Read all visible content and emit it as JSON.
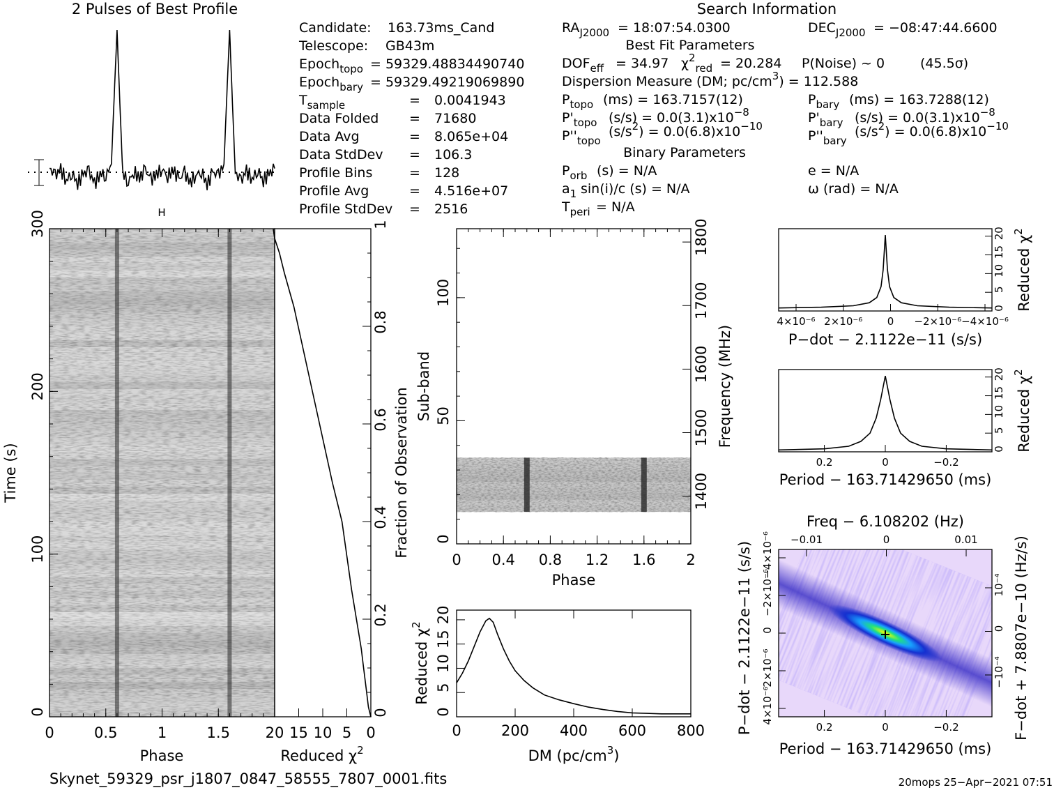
{
  "profile": {
    "title": "2 Pulses of Best Profile"
  },
  "info": {
    "search_title": "Search Information",
    "candidate_label": "Candidate:",
    "candidate_value": "163.73ms_Cand",
    "telescope_label": "Telescope:",
    "telescope_value": "GB43m",
    "epoch_topo_label": "Epoch",
    "epoch_topo_sub": "topo",
    "epoch_topo_value": "= 59329.48834490740",
    "epoch_bary_label": "Epoch",
    "epoch_bary_sub": "bary",
    "epoch_bary_value": "= 59329.49219069890",
    "tsample_label": "T",
    "tsample_sub": "sample",
    "tsample_value": "0.0041943",
    "folded_label": "Data Folded",
    "folded_value": "71680",
    "avg_label": "Data Avg",
    "avg_value": "8.065e+04",
    "std_label": "Data StdDev",
    "std_value": "106.3",
    "bins_label": "Profile Bins",
    "bins_value": "128",
    "pavg_label": "Profile Avg",
    "pavg_value": "4.516e+07",
    "pstd_label": "Profile StdDev",
    "pstd_value": "2516",
    "eq": "=",
    "ra_label": "RA",
    "ra_sub": "J2000",
    "ra_value": "= 18:07:54.0300",
    "dec_label": "DEC",
    "dec_sub": "J2000",
    "dec_value": "= −08:47:44.6600",
    "best_fit_title": "Best Fit Parameters",
    "dof_label": "DOF",
    "dof_sub": "eff",
    "dof_value": "= 34.97",
    "chi_label": "χ",
    "chi_sup": "2",
    "chi_sub": "red",
    "chi_value": "= 20.284",
    "pnoise": "P(Noise) ~ 0",
    "sigma": "(45.5σ)",
    "dm_label": "Dispersion Measure (DM; pc/cm",
    "dm_sup": "3",
    "dm_value": ") = 112.588",
    "ptopo_label": "P",
    "ptopo_sub": "topo",
    "ptopo_value": "(ms)  =  163.7157(12)",
    "pbary_label": "P",
    "pbary_sub": "bary",
    "pbary_value": "(ms)  =  163.7288(12)",
    "pdtopo_label": "P'",
    "pdtopo_sub": "topo",
    "pdtopo_value": "(s/s) = 0.0(3.1)x10",
    "pdtopo_exp": "−8",
    "pdbary_label": "P'",
    "pdbary_sub": "bary",
    "pdbary_value": "(s/s) = 0.0(3.1)x10",
    "pdbary_exp": "−8",
    "pddtopo_label": "P''",
    "pddtopo_sub": "topo",
    "pddtopo_value": "(s/s",
    "pddtopo_sup": "2",
    "pddtopo_value2": ") = 0.0(6.8)x10",
    "pddtopo_exp": "−10",
    "pddbary_label": "P''",
    "pddbary_sub": "bary",
    "pddbary_value": "(s/s",
    "pddbary_sup": "2",
    "pddbary_value2": ") = 0.0(6.8)x10",
    "pddbary_exp": "−10",
    "binary_title": "Binary Parameters",
    "porb_label": "P",
    "porb_sub": "orb",
    "porb_value": "(s) = N/A",
    "e_value": "e = N/A",
    "a1_label": "a",
    "a1_sub": "1",
    "a1_value": "sin(i)/c (s) = N/A",
    "omega_value": "ω (rad) = N/A",
    "tperi_label": "T",
    "tperi_sub": "peri",
    "tperi_value": "= N/A"
  },
  "footer": {
    "filename": "Skynet_59329_psr_j1807_0847_58555_7807_0001.fits",
    "stamp": "20mops 25−Apr−2021 07:51"
  },
  "chart_data": [
    {
      "type": "line",
      "name": "profile",
      "title": "2 Pulses of Best Profile",
      "x": [
        0,
        0.05,
        0.1,
        0.15,
        0.2,
        0.25,
        0.3,
        0.35,
        0.4,
        0.45,
        0.5,
        0.55,
        0.575,
        0.6,
        0.625,
        0.65,
        0.7,
        0.75,
        0.8,
        0.85,
        0.9,
        0.95,
        1.0,
        1.05,
        1.1,
        1.15,
        1.2,
        1.25,
        1.3,
        1.35,
        1.4,
        1.45,
        1.5,
        1.55,
        1.575,
        1.6,
        1.625,
        1.65,
        1.7,
        1.75,
        1.8,
        1.85,
        1.9,
        1.95,
        2.0
      ],
      "values": [
        0.05,
        0.0,
        0.04,
        -0.03,
        0.02,
        -0.05,
        0.01,
        0.03,
        -0.06,
        0.02,
        0.0,
        0.08,
        0.55,
        1.0,
        0.5,
        0.02,
        -0.04,
        0.03,
        -0.02,
        0.04,
        -0.03,
        0.01,
        0.05,
        0.0,
        0.04,
        -0.03,
        0.02,
        -0.05,
        0.01,
        0.03,
        -0.06,
        0.02,
        0.0,
        0.08,
        0.55,
        1.0,
        0.5,
        0.02,
        -0.04,
        0.03,
        -0.02,
        0.04,
        -0.03,
        0.01,
        0.05
      ]
    },
    {
      "type": "heatmap",
      "name": "time-phase",
      "xlabel": "Phase",
      "ylabel": "Time (s)",
      "xlim": [
        0,
        2
      ],
      "ylim": [
        0,
        300
      ],
      "xticks": [
        "0",
        "0.5",
        "1",
        "1.5"
      ],
      "yticks": [
        "0",
        "100",
        "200",
        "300"
      ],
      "pulse_phases": [
        0.6,
        1.6
      ]
    },
    {
      "type": "line",
      "name": "cumulative-chi2",
      "xlabel": "Reduced χ",
      "xlabel_sup": "2",
      "ylabel": "Fraction of Observation",
      "xlim": [
        20,
        0
      ],
      "ylim": [
        0,
        1
      ],
      "xticks": [
        "20",
        "15",
        "10",
        "5",
        "0"
      ],
      "yticks": [
        "0",
        "0.2",
        "0.4",
        "0.6",
        "0.8",
        "1"
      ],
      "x": [
        0,
        0.5,
        1,
        1.5,
        2,
        3,
        4,
        5,
        6,
        8,
        10,
        12,
        14,
        16,
        18,
        19,
        20,
        20.3
      ],
      "y": [
        0.0,
        0.02,
        0.06,
        0.1,
        0.14,
        0.2,
        0.26,
        0.33,
        0.4,
        0.48,
        0.57,
        0.66,
        0.75,
        0.84,
        0.91,
        0.95,
        0.98,
        1.0
      ]
    },
    {
      "type": "heatmap",
      "name": "subband-phase",
      "xlabel": "Phase",
      "ylabel": "Sub-band",
      "y2label": "Frequency (MHz)",
      "xlim": [
        0,
        2
      ],
      "ylim": [
        0,
        128
      ],
      "xticks": [
        "0",
        "0.4",
        "0.8",
        "1.2",
        "1.6",
        "2"
      ],
      "yticks": [
        "0",
        "50",
        "100"
      ],
      "y2ticks": [
        "1400",
        "1500",
        "1600",
        "1700",
        "1800"
      ],
      "band": [
        13,
        35
      ],
      "pulse_phases": [
        0.6,
        1.6
      ]
    },
    {
      "type": "line",
      "name": "dm-chi2",
      "xlabel": "DM (pc/cm",
      "xlabel_sup": "3",
      "ylabel": "Reduced χ",
      "ylabel_sup": "2",
      "xlim": [
        0,
        800
      ],
      "ylim": [
        0,
        22
      ],
      "xticks": [
        "0",
        "200",
        "400",
        "600",
        "800"
      ],
      "yticks": [
        "0",
        "5",
        "10",
        "15",
        "20"
      ],
      "x": [
        0,
        20,
        40,
        60,
        80,
        100,
        112,
        125,
        140,
        160,
        180,
        200,
        230,
        260,
        300,
        350,
        400,
        450,
        500,
        550,
        600,
        650,
        700,
        750,
        800
      ],
      "y": [
        7,
        9,
        11.5,
        14.5,
        17.5,
        19.8,
        20.3,
        19.5,
        17,
        14,
        11.5,
        9.5,
        7.5,
        6,
        4.5,
        3.5,
        2.7,
        2.0,
        1.5,
        1.1,
        0.8,
        0.7,
        0.6,
        0.6,
        0.6
      ]
    },
    {
      "type": "line",
      "name": "pdot-chi2",
      "xlabel": "P−dot − 2.1122e−11 (s/s)",
      "ylabel": "Reduced χ",
      "ylabel_sup": "2",
      "xlim": [
        -1,
        1
      ],
      "ylim": [
        0,
        22
      ],
      "xticks": [
        "4×10⁻⁶",
        "2×10⁻⁶",
        "0",
        "−2×10⁻⁶",
        "−4×10⁻⁶"
      ],
      "yticks": [
        "0",
        "5",
        "10",
        "15",
        "20"
      ],
      "x": [
        -1,
        -0.6,
        -0.3,
        -0.15,
        -0.08,
        -0.04,
        -0.02,
        0,
        0.02,
        0.04,
        0.08,
        0.15,
        0.3,
        0.6,
        1
      ],
      "y": [
        0.8,
        1.0,
        1.4,
        2.2,
        3.6,
        6.5,
        11,
        20.3,
        11,
        6.5,
        3.6,
        2.2,
        1.4,
        1.0,
        0.8
      ]
    },
    {
      "type": "line",
      "name": "period-chi2",
      "xlabel": "Period − 163.71429650 (ms)",
      "ylabel": "Reduced χ",
      "ylabel_sup": "2",
      "xlim": [
        0.35,
        -0.35
      ],
      "ylim": [
        0,
        22
      ],
      "xticks": [
        "0.2",
        "0",
        "−0.2"
      ],
      "yticks": [
        "0",
        "5",
        "10",
        "15",
        "20"
      ],
      "x": [
        0.35,
        0.2,
        0.12,
        0.08,
        0.05,
        0.03,
        0.015,
        0,
        -0.015,
        -0.03,
        -0.05,
        -0.08,
        -0.12,
        -0.2,
        -0.35
      ],
      "y": [
        0.5,
        0.8,
        1.5,
        2.8,
        5,
        9,
        14,
        20.3,
        14,
        9,
        5,
        2.8,
        1.5,
        0.8,
        0.5
      ]
    },
    {
      "type": "heatmap",
      "name": "pdot-period-plane",
      "title": "Freq − 6.108202 (Hz)",
      "xlabel": "Period − 163.71429650 (ms)",
      "ylabel": "P−dot − 2.1122e−11 (s/s)",
      "y2label": "F−dot + 7.8807e−10 (Hz/s)",
      "xlim": [
        0.35,
        -0.35
      ],
      "xticks": [
        "0.2",
        "0",
        "−0.2"
      ],
      "x2ticks": [
        "−0.01",
        "0",
        "0.01"
      ],
      "yticks": [
        "4×10⁻⁶",
        "2×10⁻⁶",
        "0",
        "−2×10⁻⁶",
        "−4×10⁻⁶"
      ],
      "y2ticks": [
        "10⁻⁴",
        "0",
        "−10⁻⁴"
      ]
    }
  ]
}
